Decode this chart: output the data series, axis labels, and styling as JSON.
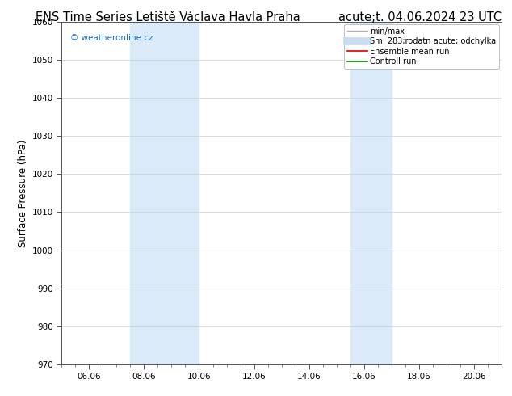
{
  "title_left": "ENS Time Series Letiště Václava Havla Praha",
  "title_right": "acute;t. 04.06.2024 23 UTC",
  "ylabel": "Surface Pressure (hPa)",
  "ylim": [
    970,
    1060
  ],
  "yticks": [
    970,
    980,
    990,
    1000,
    1010,
    1020,
    1030,
    1040,
    1050,
    1060
  ],
  "xtick_labels": [
    "06.06",
    "08.06",
    "10.06",
    "12.06",
    "14.06",
    "16.06",
    "18.06",
    "20.06"
  ],
  "xtick_positions": [
    6,
    8,
    10,
    12,
    14,
    16,
    18,
    20
  ],
  "xlim": [
    5.0,
    21.0
  ],
  "watermark": "© weatheronline.cz",
  "watermark_color": "#1a6fc4",
  "bg_color": "#ffffff",
  "plot_bg_color": "#ffffff",
  "shaded_bands": [
    {
      "x_start": 7.5,
      "x_end": 10.0,
      "color": "#daeaf8"
    },
    {
      "x_start": 15.5,
      "x_end": 17.0,
      "color": "#daeaf8"
    }
  ],
  "legend_entries": [
    {
      "label": "min/max",
      "color": "#b0b0b0",
      "lw": 1.0
    },
    {
      "label": "Sm  283;rodatn acute; odchylka",
      "color": "#c8ddf0",
      "lw": 7
    },
    {
      "label": "Ensemble mean run",
      "color": "#dd0000",
      "lw": 1.2
    },
    {
      "label": "Controll run",
      "color": "#008800",
      "lw": 1.2
    }
  ],
  "grid_color": "#cccccc",
  "tick_color": "#000000",
  "spine_color": "#555555",
  "title_fontsize": 10.5,
  "legend_fontsize": 7.0,
  "label_fontsize": 8.5,
  "tick_fontsize": 7.5
}
